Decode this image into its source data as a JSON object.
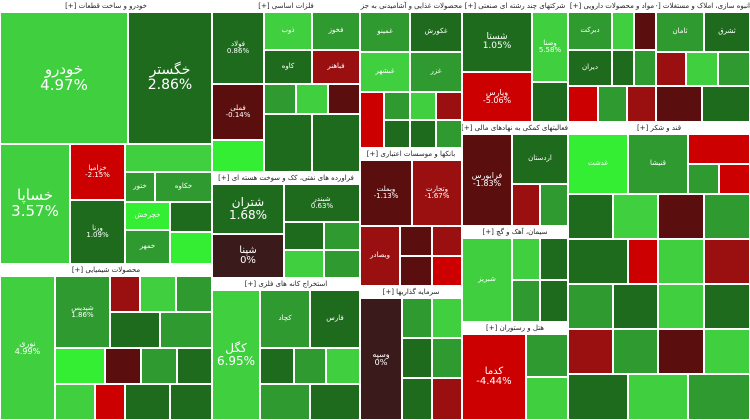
{
  "colors": {
    "neg_strong": "#cc0000",
    "neg_mid": "#9a1010",
    "neg_dark": "#5a0e0e",
    "neutral": "#3a1a1a",
    "pos_dark": "#1e6b1e",
    "pos_mid": "#2f9a2f",
    "pos_light": "#3fcf3f",
    "pos_bright": "#33ee33"
  },
  "sectors": [
    {
      "id": "automotive",
      "title": "خودرو و ساخت قطعات [+]"
    },
    {
      "id": "basic-metals",
      "title": "فلزات اساسی [+]"
    },
    {
      "id": "food",
      "title": "محصولات غذایی و آشامیدنی به جز [+]"
    },
    {
      "id": "multi-industry",
      "title": "شرکتهای چند رشته ای صنعتی [+]"
    },
    {
      "id": "pharma",
      "title": "مواد و محصولات دارویی [+]"
    },
    {
      "id": "real-estate",
      "title": "انبوه سازی، املاک و مستغلات [+]"
    },
    {
      "id": "chemical",
      "title": "محصولات شیمیایی [+]"
    },
    {
      "id": "it",
      "title": "فراورده های نفتی، کک و سوخت هسته ای [+]"
    },
    {
      "id": "banks",
      "title": "بانکها و موسسات اعتباری [+]"
    },
    {
      "id": "mining",
      "title": "استخراج کانه های فلزی [+]"
    },
    {
      "id": "cement",
      "title": "سیمان، آهک و گچ [+]"
    },
    {
      "id": "investment",
      "title": "سرمایه گذاریها [+]"
    },
    {
      "id": "holding",
      "title": "فعالیتهای کمکی به نهادهای مالی [+]"
    },
    {
      "id": "utilities",
      "title": "هتل و رستوران [+]"
    },
    {
      "id": "sugar",
      "title": "قند و شکر [+]"
    }
  ],
  "cells": [
    {
      "name": "خودرو",
      "pct": "4.97%",
      "color": "pos_light"
    },
    {
      "name": "خگستر",
      "pct": "2.86%",
      "color": "pos_dark"
    },
    {
      "name": "خساپا",
      "pct": "3.57%",
      "color": "pos_light"
    },
    {
      "name": "خزامیا",
      "pct": "-2.15%",
      "color": "neg_strong"
    },
    {
      "name": "ختور",
      "pct": "",
      "color": "pos_mid"
    },
    {
      "name": "ورنا",
      "pct": "1.09%",
      "color": "pos_dark"
    },
    {
      "name": "خکاوه",
      "pct": "",
      "color": "pos_mid"
    },
    {
      "name": "خچرخش",
      "pct": "",
      "color": "pos_bright"
    },
    {
      "name": "خمهر",
      "pct": "",
      "color": "pos_mid"
    },
    {
      "name": "فولاد",
      "pct": "0.86%",
      "color": "pos_dark"
    },
    {
      "name": "فملی",
      "pct": "-0.14%",
      "color": "neg_dark"
    },
    {
      "name": "ذوب",
      "pct": "",
      "color": "pos_light"
    },
    {
      "name": "فخوز",
      "pct": "",
      "color": "pos_mid"
    },
    {
      "name": "کاوه",
      "pct": "",
      "color": "pos_dark"
    },
    {
      "name": "فباهنر",
      "pct": "",
      "color": "neg_mid"
    },
    {
      "name": "غمینو",
      "pct": "",
      "color": "pos_mid"
    },
    {
      "name": "غکورش",
      "pct": "",
      "color": "pos_dark"
    },
    {
      "name": "غبشهر",
      "pct": "",
      "color": "pos_light"
    },
    {
      "name": "غزر",
      "pct": "",
      "color": "pos_mid"
    },
    {
      "name": "شستا",
      "pct": "1.05%",
      "color": "pos_dark"
    },
    {
      "name": "وپارس",
      "pct": "-5.06%",
      "color": "neg_strong"
    },
    {
      "name": "وصنا",
      "pct": "5.58%",
      "color": "pos_light"
    },
    {
      "name": "دبرکت",
      "pct": "",
      "color": "pos_mid"
    },
    {
      "name": "دیران",
      "pct": "",
      "color": "pos_dark"
    },
    {
      "name": "شبریز",
      "pct": "",
      "color": "pos_light"
    },
    {
      "name": "ثامان",
      "pct": "",
      "color": "pos_mid"
    },
    {
      "name": "ثشرق",
      "pct": "",
      "color": "pos_dark"
    },
    {
      "name": "نوری",
      "pct": "4.99%",
      "color": "pos_light"
    },
    {
      "name": "شپدیس",
      "pct": "1.86%",
      "color": "pos_mid"
    },
    {
      "name": "شتران",
      "pct": "1.68%",
      "color": "pos_dark"
    },
    {
      "name": "شپنا",
      "pct": "0%",
      "color": "neutral"
    },
    {
      "name": "شبندر",
      "pct": "0.63%",
      "color": "pos_dark"
    },
    {
      "name": "وبملت",
      "pct": "-1.13%",
      "color": "neg_dark"
    },
    {
      "name": "وتجارت",
      "pct": "-1.67%",
      "color": "neg_mid"
    },
    {
      "name": "وبصادر",
      "pct": "",
      "color": "neg_mid"
    },
    {
      "name": "کگل",
      "pct": "6.95%",
      "color": "pos_light"
    },
    {
      "name": "کچاد",
      "pct": "",
      "color": "pos_mid"
    },
    {
      "name": "فارس",
      "pct": "",
      "color": "pos_dark"
    },
    {
      "name": "وسپه",
      "pct": "0%",
      "color": "neutral"
    },
    {
      "name": "فرابورس",
      "pct": "-1.83%",
      "color": "neg_dark"
    },
    {
      "name": "کدما",
      "pct": "-4.44%",
      "color": "neg_strong"
    },
    {
      "name": "غدشت",
      "pct": "",
      "color": "pos_bright"
    },
    {
      "name": "قنیشا",
      "pct": "",
      "color": "pos_mid"
    },
    {
      "name": "اردستان",
      "pct": "",
      "color": "pos_dark"
    }
  ]
}
